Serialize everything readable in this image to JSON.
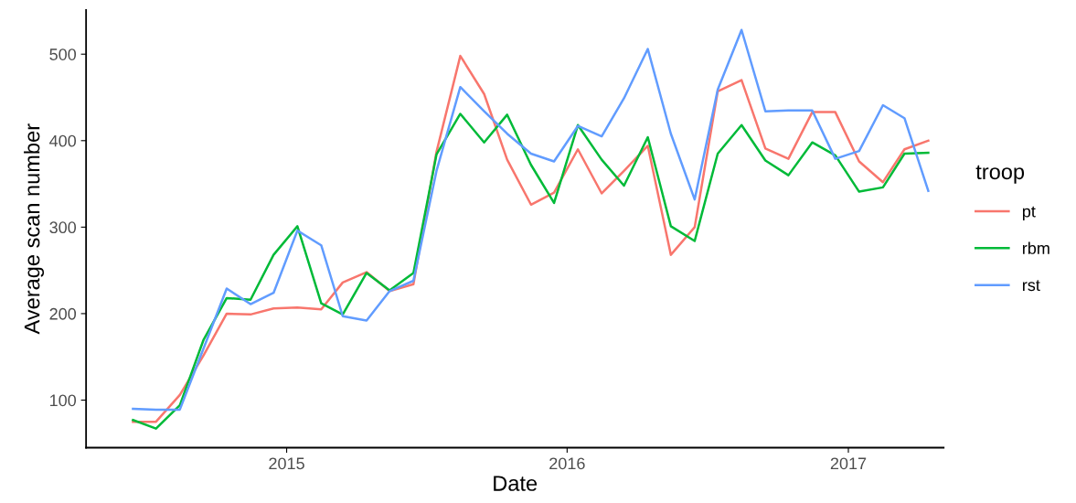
{
  "chart_data": {
    "type": "line",
    "xlabel": "Date",
    "ylabel": "Average scan number",
    "legend_title": "troop",
    "legend": "right",
    "grid": false,
    "line_style": "solid",
    "x": [
      "2014-06-15",
      "2014-07-15",
      "2014-08-15",
      "2014-09-15",
      "2014-10-15",
      "2014-11-15",
      "2014-12-15",
      "2015-01-15",
      "2015-02-15",
      "2015-03-15",
      "2015-04-15",
      "2015-05-15",
      "2015-06-15",
      "2015-07-15",
      "2015-08-15",
      "2015-09-15",
      "2015-10-15",
      "2015-11-15",
      "2015-12-15",
      "2016-01-15",
      "2016-02-15",
      "2016-03-15",
      "2016-04-15",
      "2016-05-15",
      "2016-06-15",
      "2016-07-15",
      "2016-08-15",
      "2016-09-15",
      "2016-10-15",
      "2016-11-15",
      "2016-12-15",
      "2017-01-15",
      "2017-02-15",
      "2017-03-15",
      "2017-04-15"
    ],
    "xlim": [
      "2014-04-15",
      "2017-05-05"
    ],
    "xticks": [
      {
        "value": "2015-01-01",
        "label": "2015"
      },
      {
        "value": "2016-01-01",
        "label": "2016"
      },
      {
        "value": "2017-01-01",
        "label": "2017"
      }
    ],
    "ylim": [
      45,
      551
    ],
    "yticks": [
      100,
      200,
      300,
      400,
      500
    ],
    "series": [
      {
        "name": "pt",
        "color": "#f8766d",
        "values": [
          75,
          75,
          106,
          152,
          200,
          199,
          206,
          207,
          205,
          236,
          248,
          226,
          234,
          387,
          498,
          454,
          378,
          326,
          340,
          390,
          339,
          365,
          394,
          268,
          300,
          457,
          470,
          391,
          379,
          433,
          433,
          376,
          352,
          390,
          400
        ]
      },
      {
        "name": "rbm",
        "color": "#00ba38",
        "values": [
          77,
          67,
          94,
          170,
          218,
          216,
          268,
          301,
          212,
          199,
          247,
          227,
          247,
          384,
          431,
          398,
          430,
          372,
          328,
          418,
          378,
          348,
          404,
          301,
          284,
          385,
          418,
          377,
          360,
          398,
          383,
          341,
          346,
          385,
          386
        ]
      },
      {
        "name": "rst",
        "color": "#619cff",
        "values": [
          90,
          89,
          89,
          160,
          229,
          211,
          224,
          296,
          279,
          197,
          192,
          226,
          238,
          365,
          462,
          434,
          408,
          385,
          376,
          417,
          405,
          449,
          506,
          408,
          332,
          459,
          528,
          434,
          435,
          435,
          379,
          388,
          441,
          426,
          342
        ]
      }
    ]
  }
}
